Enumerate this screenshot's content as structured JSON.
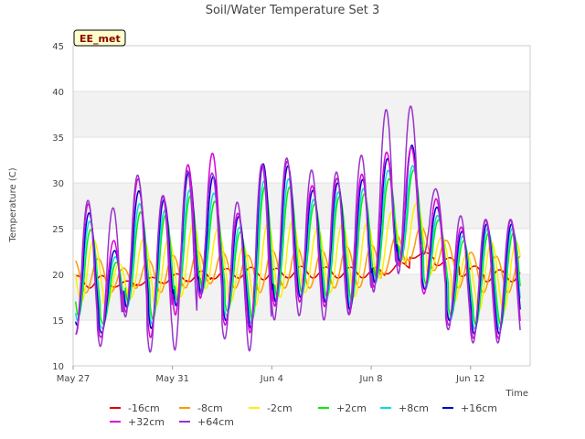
{
  "chart_data": {
    "type": "line",
    "title": "Soil/Water Temperature Set 3",
    "xlabel": "Time",
    "ylabel": "Temperature (C)",
    "annotation": "EE_met",
    "ylim": [
      10,
      45
    ],
    "yticks": [
      10,
      15,
      20,
      25,
      30,
      35,
      40,
      45
    ],
    "xlim_days": [
      0,
      18.4
    ],
    "xticks": [
      {
        "day": 0,
        "label": "May 27"
      },
      {
        "day": 4,
        "label": "May 31"
      },
      {
        "day": 8,
        "label": "Jun 4"
      },
      {
        "day": 12,
        "label": "Jun 8"
      },
      {
        "day": 16,
        "label": "Jun 12"
      }
    ],
    "x_start_date": "May 27",
    "grid": "horizontal bands",
    "legend_position": "bottom",
    "colors": {
      "-16cm": "#dd0000",
      "-8cm": "#ff9900",
      "-2cm": "#ffee00",
      "+2cm": "#00ee00",
      "+8cm": "#00dddd",
      "+16cm": "#0000cc",
      "+32cm": "#dd00dd",
      "+64cm": "#9933cc"
    },
    "daily_peaks": {
      "+64cm": [
        28.5,
        26.3,
        31.5,
        28.0,
        31.2,
        32.0,
        27.0,
        31.8,
        33.0,
        31.5,
        31.0,
        32.0,
        37.5,
        40.3,
        30.0,
        26.5,
        26.0
      ],
      "+32cm": [
        29.0,
        22.0,
        31.0,
        28.0,
        31.3,
        35.0,
        25.5,
        31.8,
        33.0,
        29.5,
        30.5,
        30.5,
        33.0,
        35.0,
        29.0,
        25.0,
        26.0
      ],
      "+16cm": [
        28.0,
        21.0,
        29.5,
        27.5,
        31.0,
        32.0,
        25.0,
        32.0,
        32.5,
        29.0,
        30.0,
        30.0,
        32.0,
        35.5,
        28.0,
        24.5,
        25.5
      ],
      "+8cm": [
        27.0,
        20.5,
        28.0,
        26.5,
        29.0,
        30.0,
        24.0,
        30.0,
        31.0,
        28.0,
        29.0,
        29.0,
        31.0,
        33.0,
        27.0,
        24.0,
        25.0
      ],
      "+2cm": [
        26.0,
        20.0,
        27.0,
        26.0,
        28.5,
        29.0,
        23.5,
        29.5,
        30.0,
        27.5,
        28.5,
        28.5,
        30.0,
        32.5,
        26.5,
        23.5,
        24.5
      ],
      "-2cm": [
        24.5,
        20.5,
        24.0,
        23.5,
        25.5,
        25.5,
        22.5,
        25.5,
        26.0,
        25.0,
        25.5,
        25.5,
        26.5,
        28.5,
        24.5,
        22.0,
        23.5
      ],
      "-8cm": [
        22.0,
        20.5,
        21.5,
        22.0,
        22.5,
        22.5,
        22.0,
        22.5,
        23.0,
        22.5,
        23.0,
        23.0,
        24.0,
        25.5,
        24.0,
        22.5,
        22.0
      ],
      "-16cm": [
        20.0,
        19.2,
        19.6,
        20.0,
        20.3,
        20.6,
        20.8,
        20.6,
        20.9,
        20.8,
        20.8,
        20.7,
        21.0,
        22.5,
        22.0,
        21.0,
        20.5
      ]
    },
    "daily_troughs": {
      "+64cm": [
        13.5,
        12.0,
        15.5,
        11.5,
        11.5,
        18.0,
        13.0,
        11.5,
        15.0,
        15.5,
        15.0,
        15.5,
        18.0,
        20.0,
        22.5,
        14.0,
        12.5
      ],
      "+32cm": [
        13.5,
        13.0,
        16.0,
        13.0,
        15.5,
        17.5,
        14.5,
        13.5,
        16.5,
        17.0,
        16.5,
        15.5,
        18.5,
        21.0,
        18.0,
        14.5,
        13.0
      ],
      "+16cm": [
        14.5,
        13.5,
        16.5,
        14.0,
        16.5,
        18.0,
        15.0,
        14.0,
        17.0,
        17.5,
        17.0,
        16.0,
        19.0,
        21.5,
        18.5,
        15.0,
        13.5
      ],
      "+8cm": [
        15.0,
        14.0,
        16.5,
        14.5,
        16.5,
        18.0,
        15.5,
        14.5,
        17.0,
        17.5,
        17.0,
        16.5,
        19.0,
        21.5,
        18.5,
        15.0,
        14.0
      ],
      "+2cm": [
        15.5,
        14.5,
        17.0,
        15.0,
        17.0,
        18.5,
        16.0,
        15.0,
        17.5,
        18.0,
        17.5,
        17.0,
        19.5,
        22.0,
        19.0,
        15.5,
        14.5
      ],
      "-2cm": [
        17.0,
        16.5,
        17.5,
        16.5,
        17.5,
        18.5,
        17.0,
        16.5,
        17.5,
        18.0,
        18.0,
        17.5,
        19.5,
        21.5,
        20.0,
        17.0,
        16.0
      ],
      "-8cm": [
        18.0,
        18.0,
        18.5,
        18.0,
        18.5,
        19.0,
        18.5,
        18.0,
        18.5,
        18.5,
        18.5,
        18.5,
        20.0,
        21.5,
        20.5,
        18.5,
        18.0
      ],
      "-16cm": [
        18.5,
        18.6,
        18.8,
        19.0,
        19.2,
        19.5,
        19.6,
        19.4,
        19.6,
        19.6,
        19.6,
        19.6,
        20.0,
        21.8,
        21.0,
        19.8,
        19.2
      ]
    },
    "series_order": [
      "-16cm",
      "-8cm",
      "-2cm",
      "+2cm",
      "+8cm",
      "+16cm",
      "+32cm",
      "+64cm"
    ],
    "legend": [
      "-16cm",
      "-8cm",
      "-2cm",
      "+2cm",
      "+8cm",
      "+16cm",
      "+32cm",
      "+64cm"
    ]
  }
}
